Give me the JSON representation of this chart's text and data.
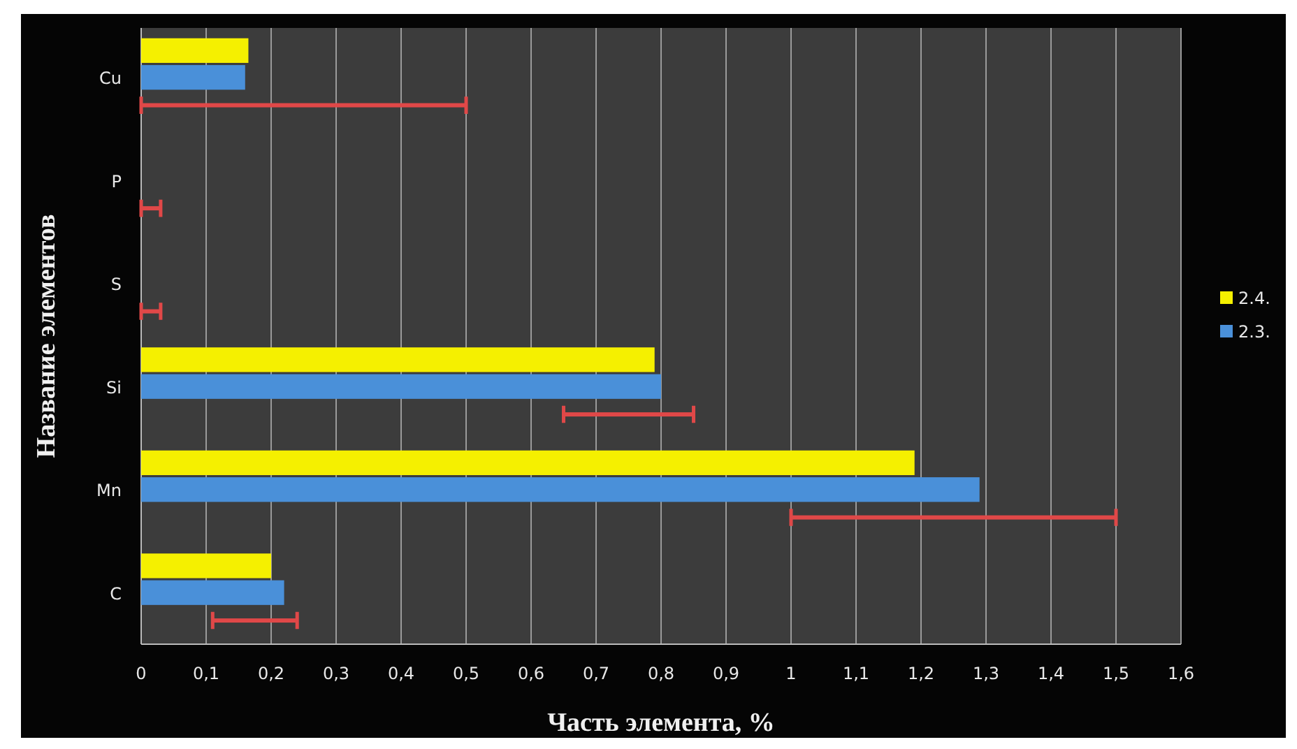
{
  "chart_data": {
    "type": "bar",
    "orientation": "horizontal",
    "xlabel": "Часть элемента, %",
    "ylabel": "Название элементов",
    "categories": [
      "Cu",
      "P",
      "S",
      "Si",
      "Mn",
      "C"
    ],
    "series": [
      {
        "name": "2.4.",
        "color": "#f5f000",
        "values": [
          0.165,
          0,
          0,
          0.79,
          1.19,
          0.2
        ]
      },
      {
        "name": "2.3.",
        "color": "#4a90d9",
        "values": [
          0.16,
          0,
          0,
          0.8,
          1.29,
          0.22
        ]
      },
      {
        "color": "#e04848",
        "base": [
          0,
          0,
          0,
          0.65,
          1.0,
          0.11
        ],
        "values": [
          0.5,
          0.03,
          0.03,
          0.2,
          0.5,
          0.13
        ]
      }
    ],
    "xlim": [
      0,
      1.6
    ],
    "xticks": [
      0,
      {
        "value": 0.1,
        "label": "0,1"
      },
      {
        "value": 0.2,
        "label": "0,2"
      },
      {
        "value": 0.3,
        "label": "0,3"
      },
      {
        "value": 0.4,
        "label": "0,4"
      },
      {
        "value": 0.5,
        "label": "0,5"
      },
      {
        "value": 0.6,
        "label": "0,6"
      },
      {
        "value": 0.7,
        "label": "0,7"
      },
      {
        "value": 0.8,
        "label": "0,8"
      },
      {
        "value": 0.9,
        "label": "0,9"
      },
      1,
      {
        "value": 1.1,
        "label": "1,1"
      },
      {
        "value": 1.2,
        "label": "1,2"
      },
      {
        "value": 1.3,
        "label": "1,3"
      },
      {
        "value": 1.4,
        "label": "1,4"
      },
      {
        "value": 1.5,
        "label": "1,5"
      },
      {
        "value": 1.6,
        "label": "1,6"
      }
    ],
    "grid": "x",
    "legend": "right"
  }
}
